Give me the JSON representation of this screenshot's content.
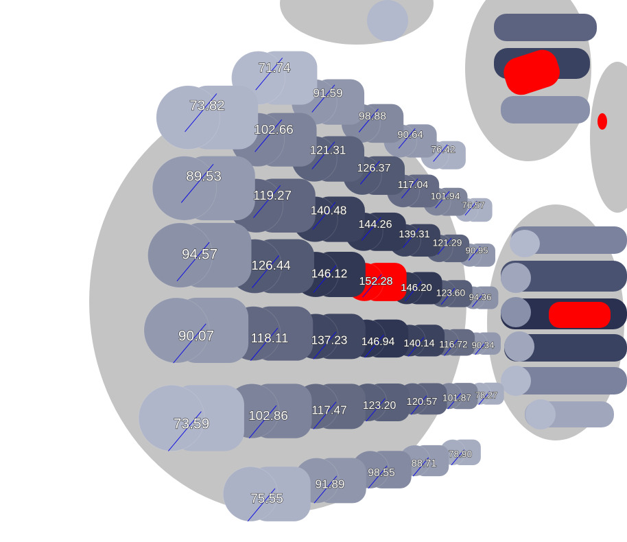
{
  "assembly": {
    "rows": [
      [
        "71.74",
        "91.59",
        "98.88",
        "90.64",
        "76.42"
      ],
      [
        "73.82",
        "102.66",
        "121.31",
        "126.37",
        "117.04",
        "101.94",
        "76.57"
      ],
      [
        "89.53",
        "119.27",
        "140.48",
        "144.26",
        "139.31",
        "121.29",
        "90.95"
      ],
      [
        "94.57",
        "126.44",
        "146.12",
        "152.28",
        "146.20",
        "123.60",
        "94.36"
      ],
      [
        "90.07",
        "118.11",
        "137.23",
        "146.94",
        "140.14",
        "116.72",
        "90.34"
      ],
      [
        "73.59",
        "102.86",
        "117.47",
        "123.20",
        "120.57",
        "101.87",
        "78.27"
      ],
      [
        "75.55",
        "91.89",
        "98.55",
        "88.71",
        "78.90"
      ]
    ]
  }
}
